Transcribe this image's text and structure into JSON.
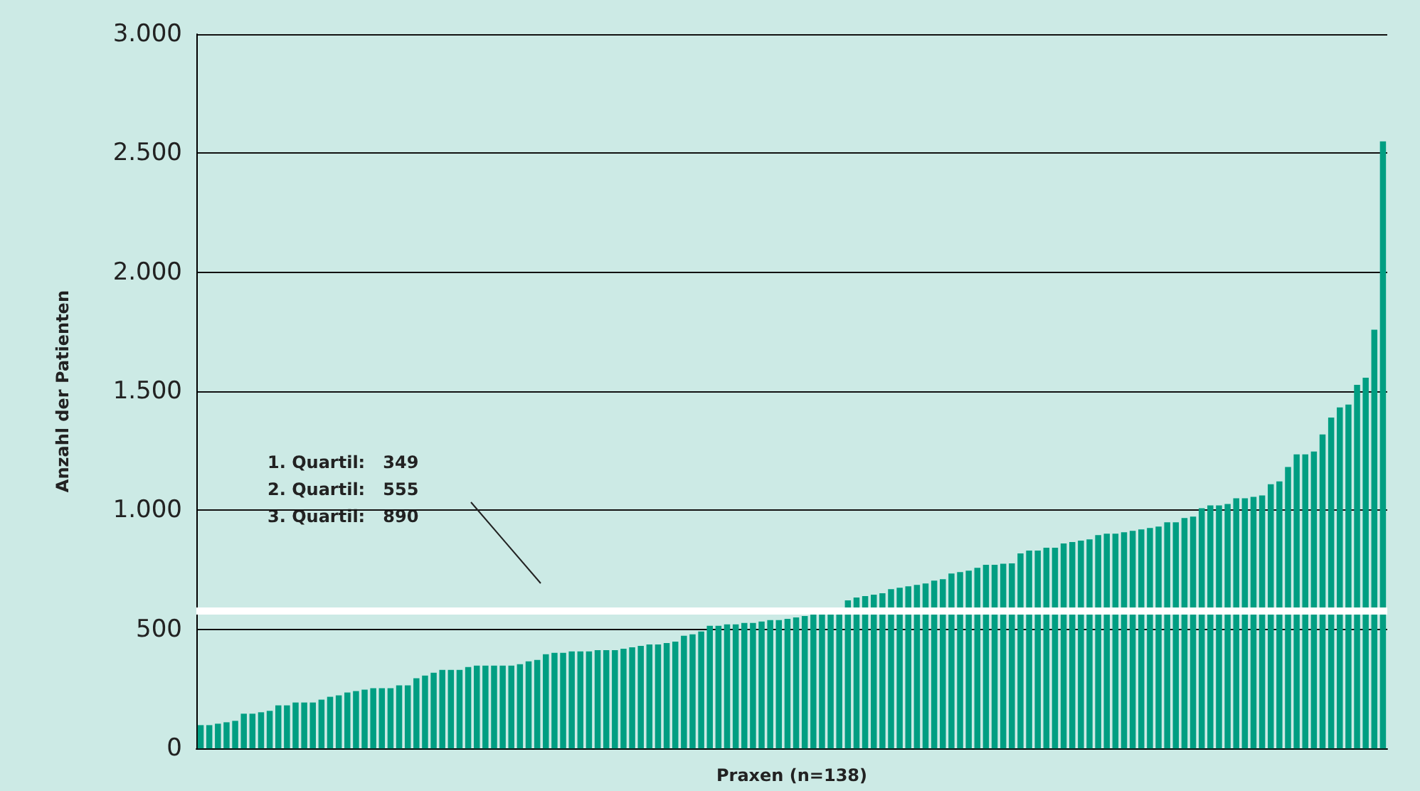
{
  "chart_data": {
    "type": "bar",
    "xlabel": "Praxen (n=138)",
    "ylabel": "Anzahl der Patienten",
    "categories": [
      null,
      null,
      null,
      null,
      null,
      null,
      null,
      null,
      null,
      null,
      null,
      null,
      null,
      null,
      null,
      null,
      null,
      null,
      null,
      null,
      null,
      null,
      null,
      null,
      null,
      null,
      null,
      null,
      null,
      null,
      null,
      null,
      null,
      null,
      null,
      null,
      null,
      null,
      null,
      null,
      null,
      null,
      null,
      null,
      null,
      null,
      null,
      null,
      null,
      null,
      null,
      null,
      null,
      null,
      null,
      null,
      null,
      null,
      null,
      null,
      null,
      null,
      null,
      null,
      null,
      null,
      null,
      null,
      null,
      null,
      null,
      null,
      null,
      null,
      null,
      null,
      null,
      null,
      null,
      null,
      null,
      null,
      null,
      null,
      null,
      null,
      null,
      null,
      null,
      null,
      null,
      null,
      null,
      null,
      null,
      null,
      null,
      null,
      null,
      null,
      null,
      null,
      null,
      null,
      null,
      null,
      null,
      null,
      null,
      null,
      null,
      null,
      null,
      null,
      null,
      null,
      null,
      null,
      null,
      null,
      null,
      null,
      null,
      null,
      null,
      null,
      null,
      null,
      null,
      null,
      null,
      null,
      null,
      null,
      null,
      null,
      null,
      null
    ],
    "values": [
      98,
      98,
      104,
      110,
      116,
      146,
      146,
      152,
      158,
      181,
      181,
      193,
      193,
      193,
      205,
      217,
      223,
      235,
      241,
      247,
      253,
      253,
      253,
      265,
      265,
      295,
      306,
      318,
      330,
      330,
      330,
      342,
      348,
      348,
      348,
      348,
      348,
      354,
      366,
      372,
      396,
      402,
      402,
      408,
      408,
      408,
      413,
      413,
      413,
      419,
      425,
      431,
      437,
      437,
      443,
      449,
      473,
      479,
      491,
      515,
      515,
      521,
      521,
      527,
      527,
      533,
      539,
      539,
      544,
      550,
      556,
      570,
      570,
      570,
      570,
      622,
      634,
      640,
      646,
      652,
      669,
      675,
      681,
      687,
      693,
      705,
      711,
      735,
      741,
      747,
      759,
      771,
      771,
      776,
      777,
      819,
      831,
      831,
      843,
      843,
      861,
      867,
      873,
      878,
      896,
      902,
      902,
      908,
      914,
      920,
      926,
      932,
      950,
      950,
      968,
      974,
      1009,
      1021,
      1021,
      1027,
      1051,
      1051,
      1057,
      1063,
      1110,
      1122,
      1182,
      1235,
      1235,
      1247,
      1319,
      1390,
      1432,
      1444,
      1527,
      1557,
      1759,
      2550
    ],
    "color": "#009e82",
    "ylim": [
      0,
      3000
    ],
    "yticks": [
      {
        "value": 0,
        "label": "0"
      },
      {
        "value": 500,
        "label": "500"
      },
      {
        "value": 1000,
        "label": "1.000"
      },
      {
        "value": 1500,
        "label": "1.500"
      },
      {
        "value": 2000,
        "label": "2.000"
      },
      {
        "value": 2500,
        "label": "2.500"
      },
      {
        "value": 3000,
        "label": "3.000"
      }
    ],
    "grid": "y",
    "ref_lines": [
      {
        "axis": "y",
        "value": 578,
        "color": "#ffffff"
      }
    ],
    "annotations": [
      "1. Quartil:   349",
      "2. Quartil:   555",
      "3. Quartil:   890"
    ]
  }
}
